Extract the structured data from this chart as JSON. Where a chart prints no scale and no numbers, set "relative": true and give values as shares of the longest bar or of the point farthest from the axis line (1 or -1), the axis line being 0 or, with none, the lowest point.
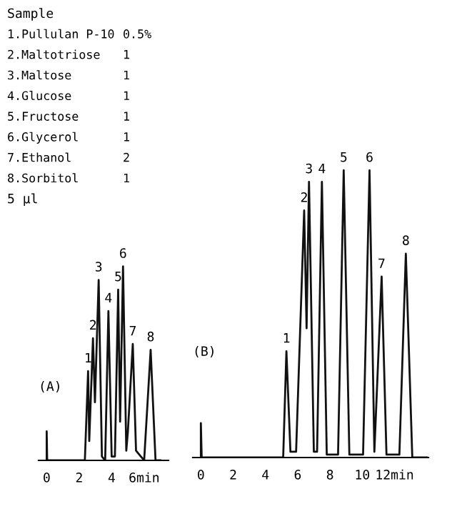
{
  "chart_data": [
    {
      "type": "line",
      "title": "(A)",
      "relative": true,
      "legend": false,
      "grid": false,
      "marker": "none",
      "line_style": "solid",
      "color": "#111111",
      "xlim": [
        -0.5,
        7.5
      ],
      "xticks": [
        0,
        2,
        4,
        {
          "value": 6,
          "label": "6min"
        }
      ],
      "x": [
        0,
        0,
        0.03,
        2.35,
        2.55,
        2.62,
        2.85,
        2.97,
        3.2,
        3.4,
        3.6,
        3.8,
        4.0,
        4.2,
        4.4,
        4.52,
        4.7,
        4.9,
        5.0,
        5.3,
        5.5,
        5.8,
        6.0,
        6.4,
        6.7,
        7.0
      ],
      "values": [
        0,
        0.15,
        0,
        0,
        0.46,
        0.1,
        0.63,
        0.3,
        0.93,
        0.02,
        0,
        0.77,
        0.02,
        0.02,
        0.88,
        0.2,
        1,
        0.05,
        0.15,
        0.6,
        0.05,
        0.02,
        0,
        0.57,
        0,
        0
      ],
      "annotations": [
        "Sample",
        "1.Pullulan P-10",
        "0.5%",
        "2.Maltotriose",
        "1",
        "3.Maltose",
        "1",
        "4.Glucose",
        "1",
        "5.Fructose",
        "1",
        "6.Glycerol",
        "1",
        "7.Ethanol",
        "2",
        "8.Sorbitol",
        "1",
        "5 μl",
        {
          "text": "1",
          "x": 2.55,
          "y": 0.46
        },
        {
          "text": "2",
          "x": 2.85,
          "y": 0.63
        },
        {
          "text": "3",
          "x": 3.2,
          "y": 0.93
        },
        {
          "text": "4",
          "x": 3.8,
          "y": 0.77
        },
        {
          "text": "5",
          "x": 4.4,
          "y": 0.88
        },
        {
          "text": "6",
          "x": 4.7,
          "y": 1
        },
        {
          "text": "7",
          "x": 5.3,
          "y": 0.6
        },
        {
          "text": "8",
          "x": 6.4,
          "y": 0.57
        }
      ]
    },
    {
      "type": "line",
      "title": "(B)",
      "relative": true,
      "legend": false,
      "grid": false,
      "marker": "none",
      "line_style": "solid",
      "color": "#111111",
      "xlim": [
        -0.5,
        14.1
      ],
      "xticks": [
        0,
        2,
        4,
        6,
        8,
        10,
        {
          "value": 12,
          "label": "12min"
        }
      ],
      "x": [
        0,
        0,
        0.05,
        5.1,
        5.3,
        5.55,
        5.9,
        6.4,
        6.55,
        6.7,
        7.0,
        7.2,
        7.5,
        7.8,
        8.5,
        8.85,
        9.2,
        10.05,
        10.45,
        10.75,
        11.2,
        11.5,
        12.3,
        12.7,
        13.1,
        14.0
      ],
      "values": [
        0,
        0.12,
        0,
        0,
        0.37,
        0.02,
        0.02,
        0.86,
        0.45,
        0.96,
        0.02,
        0.02,
        0.96,
        0.01,
        0.01,
        1,
        0.01,
        0.01,
        1,
        0.02,
        0.63,
        0.01,
        0.01,
        0.71,
        0,
        0
      ],
      "annotations": [
        {
          "text": "1",
          "x": 5.3,
          "y": 0.37
        },
        {
          "text": "2",
          "x": 6.4,
          "y": 0.86
        },
        {
          "text": "3",
          "x": 6.7,
          "y": 0.96
        },
        {
          "text": "4",
          "x": 7.5,
          "y": 0.96
        },
        {
          "text": "5",
          "x": 8.85,
          "y": 1
        },
        {
          "text": "6",
          "x": 10.45,
          "y": 1
        },
        {
          "text": "7",
          "x": 11.2,
          "y": 0.63
        },
        {
          "text": "8",
          "x": 12.7,
          "y": 0.71
        }
      ]
    }
  ]
}
